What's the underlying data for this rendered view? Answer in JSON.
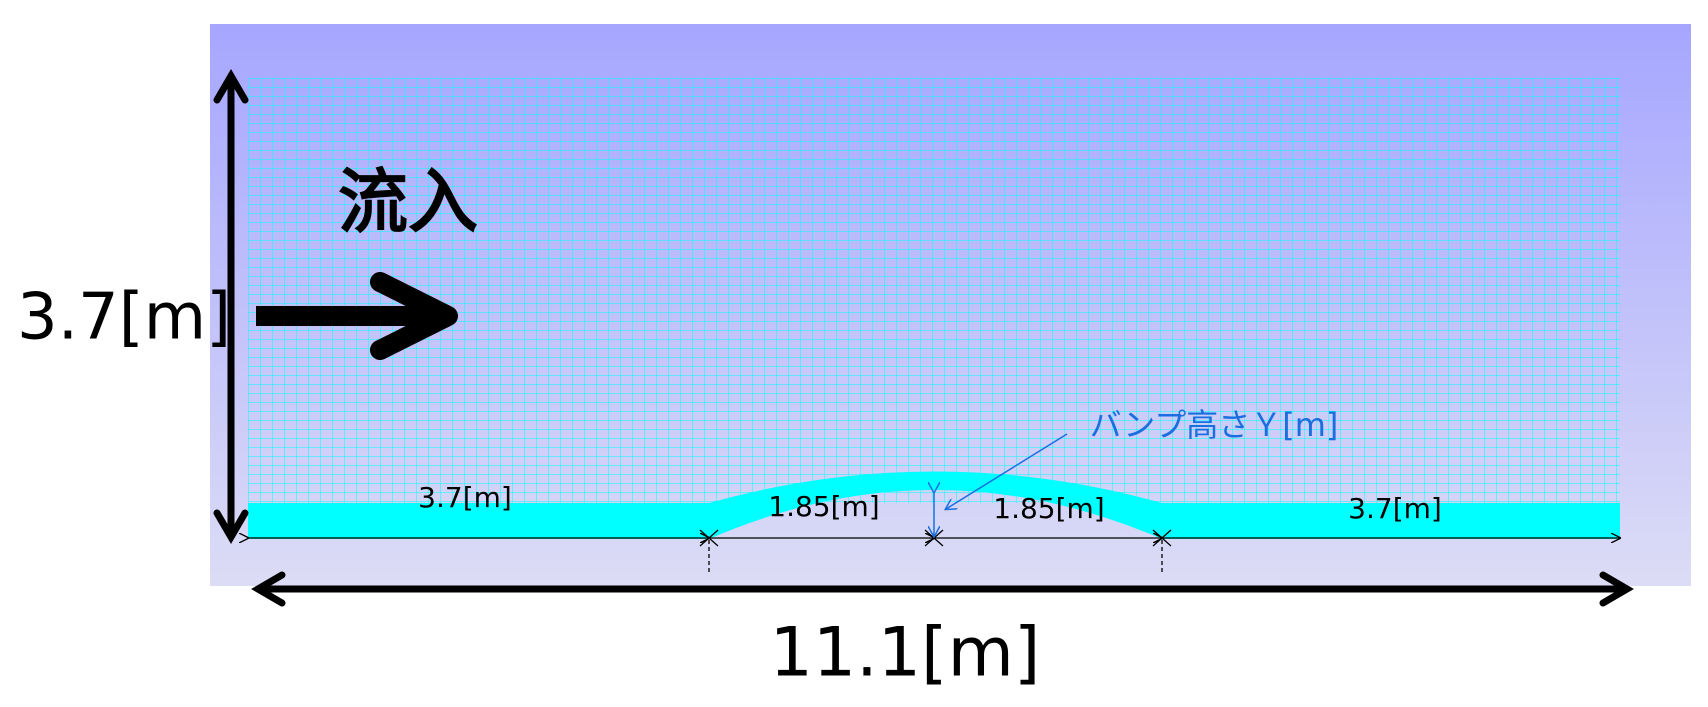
{
  "labels": {
    "inflow": "流入",
    "height": "3.7[m]",
    "length": "11.1[m]",
    "segments": [
      "3.7[m]",
      "1.85[m]",
      "1.85[m]",
      "3.7[m]"
    ],
    "bump_height": "バンプ高さＹ[m]"
  }
}
